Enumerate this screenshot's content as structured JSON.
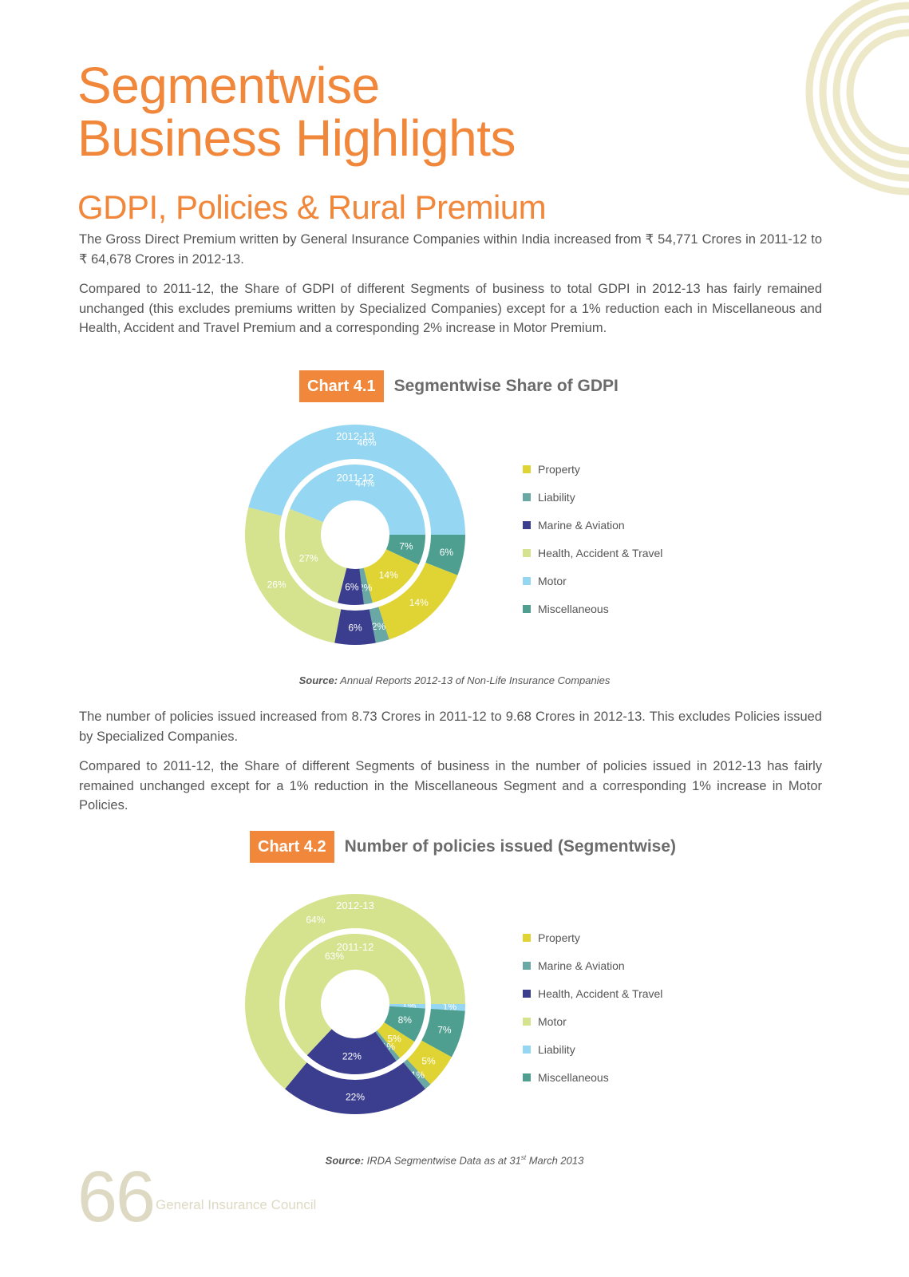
{
  "title_line1": "Segmentwise",
  "title_line2": "Business Highlights",
  "subtitle": "GDPI, Policies & Rural Premium",
  "para1": "The Gross Direct Premium written by General Insurance Companies within India increased from ₹ 54,771 Crores in 2011-12 to ₹ 64,678 Crores in 2012-13.",
  "para2": "Compared to 2011-12, the Share of GDPI of different Segments of business to total GDPI in 2012-13 has fairly remained unchanged (this excludes premiums written by Specialized Companies) except for a 1% reduction each in Miscellaneous and Health, Accident and Travel Premium and a corresponding 2% increase in Motor Premium.",
  "para3": "The number of policies issued increased from 8.73 Crores in 2011-12 to 9.68 Crores in 2012-13. This excludes Policies issued by Specialized Companies.",
  "para4": "Compared to 2011-12, the Share of different Segments of business in the number of policies issued in 2012-13 has fairly remained unchanged except for a 1% reduction in the Miscellaneous Segment and a corresponding 1% increase in Motor Policies.",
  "chart1": {
    "tag": "Chart 4.1",
    "title": "Segmentwise Share of GDPI",
    "source_label": "Source:",
    "source_text": " Annual Reports 2012-13 of Non-Life Insurance Companies"
  },
  "chart2": {
    "tag": "Chart 4.2",
    "title": "Number of policies issued (Segmentwise)",
    "source_label": "Source:",
    "source_text_pre": " IRDA Segmentwise Data as at 31",
    "source_sup": "st",
    "source_text_post": " March 2013"
  },
  "chart_data": [
    {
      "type": "pie",
      "title": "Segmentwise Share of GDPI",
      "outer_ring_label": "2012-13",
      "inner_ring_label": "2011-12",
      "legend": [
        {
          "name": "Property",
          "color": "#e0d435"
        },
        {
          "name": "Liability",
          "color": "#6aa8a6"
        },
        {
          "name": "Marine & Aviation",
          "color": "#3b3d8f"
        },
        {
          "name": "Health, Accident & Travel",
          "color": "#d5e28e"
        },
        {
          "name": "Motor",
          "color": "#95d6f2"
        },
        {
          "name": "Miscellaneous",
          "color": "#4e9f90"
        }
      ],
      "series": [
        {
          "name": "2012-13",
          "slices": [
            {
              "label": "Miscellaneous",
              "value": 6,
              "color": "#4e9f90"
            },
            {
              "label": "Property",
              "value": 14,
              "color": "#e0d435"
            },
            {
              "label": "Liability",
              "value": 2,
              "color": "#6aa8a6"
            },
            {
              "label": "Marine & Aviation",
              "value": 6,
              "color": "#3b3d8f"
            },
            {
              "label": "Health, Accident & Travel",
              "value": 26,
              "color": "#d5e28e"
            },
            {
              "label": "Motor",
              "value": 46,
              "color": "#95d6f2"
            }
          ]
        },
        {
          "name": "2011-12",
          "slices": [
            {
              "label": "Miscellaneous",
              "value": 7,
              "color": "#4e9f90"
            },
            {
              "label": "Property",
              "value": 14,
              "color": "#e0d435"
            },
            {
              "label": "Liability",
              "value": 2,
              "color": "#6aa8a6"
            },
            {
              "label": "Marine & Aviation",
              "value": 6,
              "color": "#3b3d8f"
            },
            {
              "label": "Health, Accident & Travel",
              "value": 27,
              "color": "#d5e28e"
            },
            {
              "label": "Motor",
              "value": 44,
              "color": "#95d6f2"
            }
          ]
        }
      ]
    },
    {
      "type": "pie",
      "title": "Number of policies issued (Segmentwise)",
      "outer_ring_label": "2012-13",
      "inner_ring_label": "2011-12",
      "legend": [
        {
          "name": "Property",
          "color": "#e0d435"
        },
        {
          "name": "Marine & Aviation",
          "color": "#6aa8a6"
        },
        {
          "name": "Health, Accident & Travel",
          "color": "#3b3d8f"
        },
        {
          "name": "Motor",
          "color": "#d5e28e"
        },
        {
          "name": "Liability",
          "color": "#95d6f2"
        },
        {
          "name": "Miscellaneous",
          "color": "#4e9f90"
        }
      ],
      "series": [
        {
          "name": "2012-13",
          "slices": [
            {
              "label": "Liability",
              "value": 1,
              "color": "#95d6f2"
            },
            {
              "label": "Miscellaneous",
              "value": 7,
              "color": "#4e9f90"
            },
            {
              "label": "Property",
              "value": 5,
              "color": "#e0d435"
            },
            {
              "label": "Marine & Aviation",
              "value": 1,
              "color": "#6aa8a6"
            },
            {
              "label": "Health, Accident & Travel",
              "value": 22,
              "color": "#3b3d8f"
            },
            {
              "label": "Motor",
              "value": 64,
              "color": "#d5e28e"
            }
          ]
        },
        {
          "name": "2011-12",
          "slices": [
            {
              "label": "Liability",
              "value": 1,
              "color": "#95d6f2"
            },
            {
              "label": "Miscellaneous",
              "value": 8,
              "color": "#4e9f90"
            },
            {
              "label": "Property",
              "value": 5,
              "color": "#e0d435"
            },
            {
              "label": "Marine & Aviation",
              "value": 1,
              "color": "#6aa8a6"
            },
            {
              "label": "Health, Accident & Travel",
              "value": 22,
              "color": "#3b3d8f"
            },
            {
              "label": "Motor",
              "value": 63,
              "color": "#d5e28e"
            }
          ]
        }
      ]
    }
  ],
  "footer": {
    "page_number": "66",
    "org_name": "General Insurance Council"
  }
}
